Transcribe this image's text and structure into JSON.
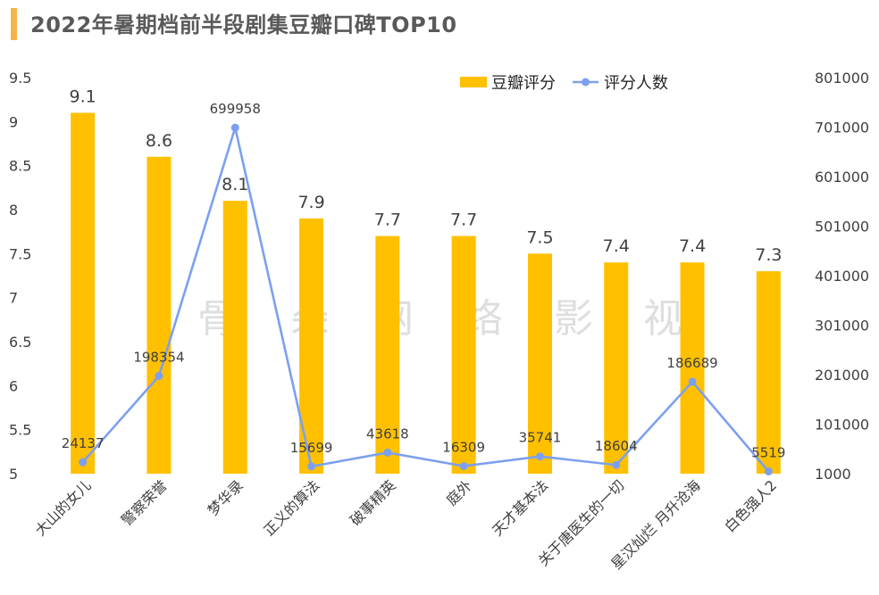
{
  "page": {
    "title": "2022年暑期档前半段剧集豆瓣口碑TOP10"
  },
  "watermark": [
    "骨",
    "朵",
    "网",
    "络",
    "影",
    "视"
  ],
  "colors": {
    "bar": "#ffc000",
    "line": "#7ca0f0",
    "accent": "#f5b447"
  },
  "chart_data": {
    "type": "bar",
    "title": "2022年暑期档前半段剧集豆瓣口碑TOP10",
    "categories": [
      "大山的女儿",
      "警察荣誉",
      "梦华录",
      "正义的算法",
      "破事精英",
      "庭外",
      "天才基本法",
      "关于唐医生的一切",
      "星汉灿烂 月升沧海",
      "白色强人2"
    ],
    "series": [
      {
        "name": "豆瓣评分",
        "kind": "bar",
        "axis": "left",
        "values": [
          9.1,
          8.6,
          8.1,
          7.9,
          7.7,
          7.7,
          7.5,
          7.4,
          7.4,
          7.3
        ],
        "labels": [
          "9.1",
          "8.6",
          "8.1",
          "7.9",
          "7.7",
          "7.7",
          "7.5",
          "7.4",
          "7.4",
          "7.3"
        ]
      },
      {
        "name": "评分人数",
        "kind": "line",
        "axis": "right",
        "values": [
          24137,
          198354,
          699958,
          15699,
          43618,
          16309,
          35741,
          18604,
          186689,
          5519
        ],
        "labels": [
          "24137",
          "198354",
          "699958",
          "15699",
          "43618",
          "16309",
          "35741",
          "18604",
          "186689",
          "5519"
        ]
      }
    ],
    "y_left": {
      "min": 5,
      "max": 9.5,
      "step": 0.5,
      "ticks": [
        "5",
        "5.5",
        "6",
        "6.5",
        "7",
        "7.5",
        "8",
        "8.5",
        "9",
        "9.5"
      ]
    },
    "y_right": {
      "min": 1000,
      "max": 801000,
      "step": 100000,
      "ticks": [
        "1000",
        "101000",
        "201000",
        "301000",
        "401000",
        "501000",
        "601000",
        "701000",
        "801000"
      ]
    },
    "legend": {
      "position": "top-right",
      "entries": [
        "豆瓣评分",
        "评分人数"
      ]
    },
    "grid": false
  }
}
